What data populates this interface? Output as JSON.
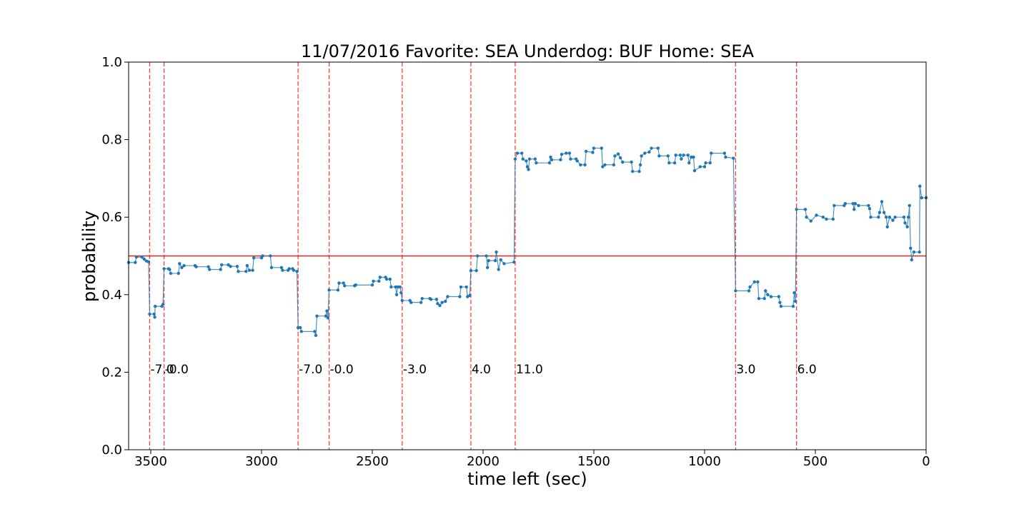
{
  "chart_data": {
    "type": "line",
    "title": "11/07/2016 Favorite: SEA Underdog: BUF Home: SEA",
    "xlabel": "time left (sec)",
    "ylabel": "probability",
    "xlim": [
      3600,
      0
    ],
    "ylim": [
      0.0,
      1.0
    ],
    "x_ticks": [
      3500,
      3000,
      2500,
      2000,
      1500,
      1000,
      500,
      0
    ],
    "x_tick_labels": [
      "3500",
      "3000",
      "2500",
      "2000",
      "1500",
      "1000",
      "500",
      "0"
    ],
    "y_ticks": [
      0.0,
      0.2,
      0.4,
      0.6,
      0.8,
      1.0
    ],
    "y_tick_labels": [
      "0.0",
      "0.2",
      "0.4",
      "0.6",
      "0.8",
      "1.0"
    ],
    "grid": false,
    "series_color": "#1f77b4",
    "reference_line": {
      "y": 0.5,
      "color": "#d62728"
    },
    "scoring_events": [
      {
        "x": 3505,
        "label": "-7.0"
      },
      {
        "x": 3440,
        "label": "-0.0"
      },
      {
        "x": 2835,
        "label": "-7.0"
      },
      {
        "x": 2695,
        "label": "-0.0"
      },
      {
        "x": 2365,
        "label": "-3.0"
      },
      {
        "x": 2055,
        "label": "4.0"
      },
      {
        "x": 1855,
        "label": "11.0"
      },
      {
        "x": 860,
        "label": "3.0"
      },
      {
        "x": 585,
        "label": "6.0"
      }
    ],
    "event_line_color": "#ff0000",
    "event_label_y": 0.21,
    "series": [
      {
        "points": [
          [
            3600,
            0.483
          ],
          [
            3570,
            0.483
          ],
          [
            3565,
            0.497
          ],
          [
            3540,
            0.497
          ],
          [
            3530,
            0.492
          ],
          [
            3520,
            0.487
          ],
          [
            3510,
            0.485
          ],
          [
            3505,
            0.35
          ],
          [
            3485,
            0.35
          ],
          [
            3482,
            0.342
          ],
          [
            3480,
            0.37
          ],
          [
            3450,
            0.37
          ],
          [
            3445,
            0.375
          ],
          [
            3440,
            0.467
          ],
          [
            3420,
            0.467
          ],
          [
            3415,
            0.465
          ],
          [
            3410,
            0.455
          ],
          [
            3375,
            0.455
          ],
          [
            3370,
            0.48
          ],
          [
            3360,
            0.47
          ],
          [
            3350,
            0.475
          ],
          [
            3300,
            0.475
          ],
          [
            3295,
            0.472
          ],
          [
            3240,
            0.472
          ],
          [
            3235,
            0.465
          ],
          [
            3185,
            0.465
          ],
          [
            3180,
            0.477
          ],
          [
            3150,
            0.477
          ],
          [
            3140,
            0.473
          ],
          [
            3110,
            0.473
          ],
          [
            3105,
            0.46
          ],
          [
            3070,
            0.46
          ],
          [
            3065,
            0.475
          ],
          [
            3055,
            0.463
          ],
          [
            3040,
            0.463
          ],
          [
            3035,
            0.495
          ],
          [
            3000,
            0.495
          ],
          [
            2995,
            0.5
          ],
          [
            2960,
            0.5
          ],
          [
            2955,
            0.47
          ],
          [
            2910,
            0.47
          ],
          [
            2905,
            0.463
          ],
          [
            2880,
            0.463
          ],
          [
            2875,
            0.467
          ],
          [
            2860,
            0.467
          ],
          [
            2855,
            0.463
          ],
          [
            2840,
            0.46
          ],
          [
            2835,
            0.315
          ],
          [
            2825,
            0.315
          ],
          [
            2820,
            0.305
          ],
          [
            2760,
            0.305
          ],
          [
            2755,
            0.295
          ],
          [
            2750,
            0.345
          ],
          [
            2710,
            0.345
          ],
          [
            2705,
            0.358
          ],
          [
            2700,
            0.34
          ],
          [
            2695,
            0.412
          ],
          [
            2655,
            0.412
          ],
          [
            2650,
            0.43
          ],
          [
            2630,
            0.43
          ],
          [
            2625,
            0.423
          ],
          [
            2580,
            0.423
          ],
          [
            2575,
            0.425
          ],
          [
            2500,
            0.425
          ],
          [
            2495,
            0.435
          ],
          [
            2470,
            0.435
          ],
          [
            2465,
            0.445
          ],
          [
            2440,
            0.445
          ],
          [
            2435,
            0.44
          ],
          [
            2420,
            0.44
          ],
          [
            2415,
            0.42
          ],
          [
            2395,
            0.42
          ],
          [
            2390,
            0.4
          ],
          [
            2385,
            0.42
          ],
          [
            2375,
            0.42
          ],
          [
            2370,
            0.405
          ],
          [
            2365,
            0.385
          ],
          [
            2330,
            0.385
          ],
          [
            2325,
            0.38
          ],
          [
            2280,
            0.38
          ],
          [
            2275,
            0.39
          ],
          [
            2240,
            0.39
          ],
          [
            2235,
            0.388
          ],
          [
            2210,
            0.388
          ],
          [
            2205,
            0.377
          ],
          [
            2195,
            0.372
          ],
          [
            2185,
            0.38
          ],
          [
            2170,
            0.383
          ],
          [
            2160,
            0.395
          ],
          [
            2105,
            0.395
          ],
          [
            2100,
            0.42
          ],
          [
            2075,
            0.42
          ],
          [
            2070,
            0.395
          ],
          [
            2060,
            0.398
          ],
          [
            2055,
            0.462
          ],
          [
            2030,
            0.462
          ],
          [
            2025,
            0.5
          ],
          [
            1985,
            0.5
          ],
          [
            1980,
            0.47
          ],
          [
            1975,
            0.488
          ],
          [
            1945,
            0.488
          ],
          [
            1940,
            0.51
          ],
          [
            1930,
            0.465
          ],
          [
            1920,
            0.49
          ],
          [
            1905,
            0.48
          ],
          [
            1860,
            0.484
          ],
          [
            1855,
            0.75
          ],
          [
            1845,
            0.765
          ],
          [
            1825,
            0.765
          ],
          [
            1820,
            0.75
          ],
          [
            1805,
            0.745
          ],
          [
            1800,
            0.73
          ],
          [
            1795,
            0.723
          ],
          [
            1790,
            0.75
          ],
          [
            1765,
            0.75
          ],
          [
            1760,
            0.74
          ],
          [
            1700,
            0.74
          ],
          [
            1695,
            0.755
          ],
          [
            1690,
            0.748
          ],
          [
            1650,
            0.748
          ],
          [
            1645,
            0.762
          ],
          [
            1625,
            0.765
          ],
          [
            1610,
            0.765
          ],
          [
            1605,
            0.75
          ],
          [
            1580,
            0.75
          ],
          [
            1575,
            0.745
          ],
          [
            1560,
            0.735
          ],
          [
            1540,
            0.735
          ],
          [
            1535,
            0.77
          ],
          [
            1505,
            0.767
          ],
          [
            1500,
            0.778
          ],
          [
            1465,
            0.778
          ],
          [
            1460,
            0.73
          ],
          [
            1450,
            0.735
          ],
          [
            1410,
            0.735
          ],
          [
            1405,
            0.758
          ],
          [
            1390,
            0.763
          ],
          [
            1380,
            0.753
          ],
          [
            1370,
            0.742
          ],
          [
            1330,
            0.742
          ],
          [
            1325,
            0.718
          ],
          [
            1295,
            0.718
          ],
          [
            1290,
            0.735
          ],
          [
            1285,
            0.758
          ],
          [
            1270,
            0.765
          ],
          [
            1250,
            0.768
          ],
          [
            1240,
            0.778
          ],
          [
            1210,
            0.778
          ],
          [
            1205,
            0.758
          ],
          [
            1165,
            0.758
          ],
          [
            1160,
            0.74
          ],
          [
            1135,
            0.74
          ],
          [
            1130,
            0.76
          ],
          [
            1110,
            0.76
          ],
          [
            1105,
            0.75
          ],
          [
            1095,
            0.76
          ],
          [
            1075,
            0.76
          ],
          [
            1070,
            0.74
          ],
          [
            1060,
            0.755
          ],
          [
            1050,
            0.755
          ],
          [
            1045,
            0.72
          ],
          [
            1020,
            0.73
          ],
          [
            1000,
            0.73
          ],
          [
            995,
            0.74
          ],
          [
            975,
            0.74
          ],
          [
            970,
            0.765
          ],
          [
            910,
            0.765
          ],
          [
            905,
            0.755
          ],
          [
            870,
            0.752
          ],
          [
            860,
            0.41
          ],
          [
            800,
            0.41
          ],
          [
            795,
            0.42
          ],
          [
            775,
            0.433
          ],
          [
            760,
            0.433
          ],
          [
            755,
            0.39
          ],
          [
            730,
            0.39
          ],
          [
            725,
            0.41
          ],
          [
            715,
            0.4
          ],
          [
            700,
            0.395
          ],
          [
            665,
            0.395
          ],
          [
            660,
            0.38
          ],
          [
            655,
            0.37
          ],
          [
            600,
            0.37
          ],
          [
            595,
            0.405
          ],
          [
            590,
            0.383
          ],
          [
            585,
            0.62
          ],
          [
            545,
            0.62
          ],
          [
            540,
            0.6
          ],
          [
            520,
            0.59
          ],
          [
            495,
            0.605
          ],
          [
            465,
            0.6
          ],
          [
            450,
            0.595
          ],
          [
            420,
            0.595
          ],
          [
            415,
            0.63
          ],
          [
            370,
            0.63
          ],
          [
            365,
            0.635
          ],
          [
            330,
            0.635
          ],
          [
            325,
            0.62
          ],
          [
            320,
            0.635
          ],
          [
            305,
            0.63
          ],
          [
            260,
            0.63
          ],
          [
            255,
            0.622
          ],
          [
            250,
            0.6
          ],
          [
            215,
            0.6
          ],
          [
            210,
            0.612
          ],
          [
            200,
            0.64
          ],
          [
            190,
            0.612
          ],
          [
            180,
            0.6
          ],
          [
            175,
            0.575
          ],
          [
            165,
            0.6
          ],
          [
            150,
            0.592
          ],
          [
            140,
            0.6
          ],
          [
            100,
            0.6
          ],
          [
            95,
            0.585
          ],
          [
            85,
            0.575
          ],
          [
            80,
            0.6
          ],
          [
            75,
            0.63
          ],
          [
            70,
            0.52
          ],
          [
            65,
            0.49
          ],
          [
            55,
            0.51
          ],
          [
            30,
            0.51
          ],
          [
            28,
            0.68
          ],
          [
            20,
            0.65
          ],
          [
            0,
            0.65
          ]
        ]
      }
    ]
  }
}
